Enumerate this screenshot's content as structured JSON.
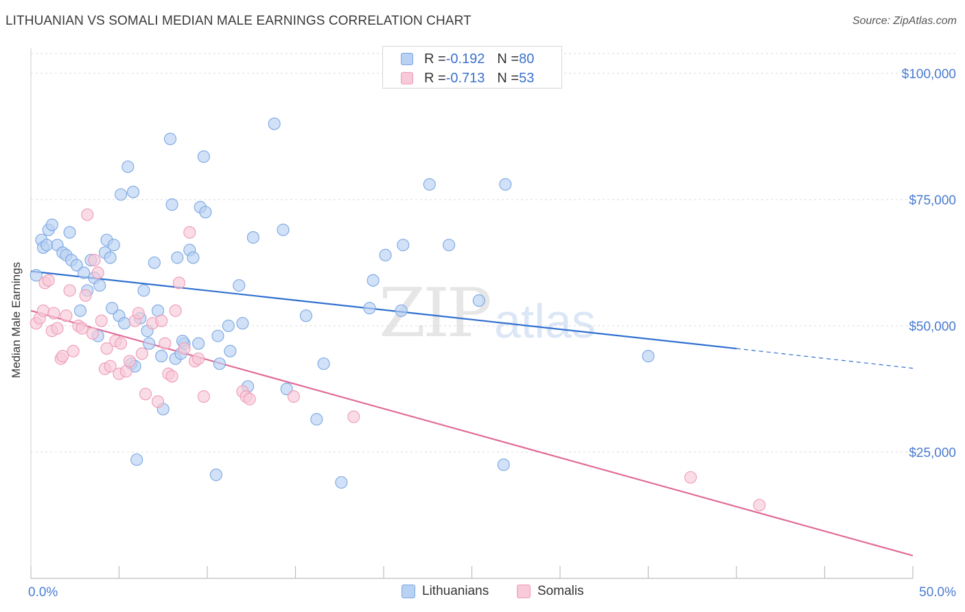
{
  "header": {
    "title": "LITHUANIAN VS SOMALI MEDIAN MALE EARNINGS CORRELATION CHART",
    "source": "Source: ZipAtlas.com"
  },
  "watermark": {
    "zip": "ZIP",
    "atlas": "atlas"
  },
  "legend_top": {
    "rows": [
      {
        "r_label": "R = ",
        "r_value": "-0.192",
        "n_label": "N = ",
        "n_value": "80"
      },
      {
        "r_label": "R = ",
        "r_value": "-0.713",
        "n_label": "N = ",
        "n_value": "53"
      }
    ]
  },
  "legend_bottom": {
    "items": [
      "Lithuanians",
      "Somalis"
    ]
  },
  "colors": {
    "blue_fill": "#b9d1f3",
    "blue_stroke": "#7aa6e2",
    "blue_line": "#2f6fd0",
    "pink_fill": "#f8c9d8",
    "pink_stroke": "#ee9ab6",
    "pink_line": "#e06b98",
    "grid": "#d9d9d9",
    "axis_text": "#4a7bd0"
  },
  "chart_data": {
    "type": "scatter",
    "title": "LITHUANIAN VS SOMALI MEDIAN MALE EARNINGS CORRELATION CHART",
    "ylabel": "Median Male Earnings",
    "xlim": [
      0,
      50
    ],
    "ylim": [
      0,
      105000
    ],
    "x_tick_labels": [
      "0.0%",
      "50.0%"
    ],
    "y_ticks": [
      25000,
      50000,
      75000,
      100000
    ],
    "y_tick_labels": [
      "$25,000",
      "$50,000",
      "$75,000",
      "$100,000"
    ],
    "grid": true,
    "legend_position": "top-center",
    "series": [
      {
        "name": "Lithuanians",
        "r": -0.192,
        "n": 80,
        "trend": {
          "x0": 0,
          "y0": 60800,
          "x1": 40,
          "y1": 45500,
          "dashed_to_x": 50,
          "dashed_to_y": 41600
        },
        "points": [
          [
            0.3,
            60000
          ],
          [
            0.6,
            67000
          ],
          [
            0.7,
            65500
          ],
          [
            0.9,
            66000
          ],
          [
            1.0,
            69000
          ],
          [
            1.2,
            70000
          ],
          [
            1.5,
            66000
          ],
          [
            1.8,
            64500
          ],
          [
            2.0,
            64000
          ],
          [
            2.2,
            68500
          ],
          [
            2.3,
            63000
          ],
          [
            2.6,
            62000
          ],
          [
            2.8,
            53000
          ],
          [
            3.0,
            60500
          ],
          [
            3.2,
            57000
          ],
          [
            3.4,
            63000
          ],
          [
            3.6,
            59500
          ],
          [
            3.8,
            48000
          ],
          [
            3.9,
            58000
          ],
          [
            4.2,
            64500
          ],
          [
            4.3,
            67000
          ],
          [
            4.5,
            63500
          ],
          [
            4.7,
            66000
          ],
          [
            5.0,
            52000
          ],
          [
            5.1,
            76000
          ],
          [
            5.3,
            50500
          ],
          [
            5.5,
            81500
          ],
          [
            5.7,
            42500
          ],
          [
            5.8,
            76500
          ],
          [
            6.0,
            23500
          ],
          [
            6.2,
            51500
          ],
          [
            6.4,
            57000
          ],
          [
            6.6,
            49000
          ],
          [
            6.7,
            46500
          ],
          [
            7.0,
            62500
          ],
          [
            7.2,
            53000
          ],
          [
            7.4,
            44000
          ],
          [
            7.5,
            33500
          ],
          [
            7.9,
            87000
          ],
          [
            8.0,
            74000
          ],
          [
            8.2,
            43500
          ],
          [
            8.3,
            63500
          ],
          [
            8.5,
            44500
          ],
          [
            8.7,
            46500
          ],
          [
            9.0,
            65000
          ],
          [
            9.2,
            63500
          ],
          [
            9.5,
            46500
          ],
          [
            9.6,
            73500
          ],
          [
            9.8,
            83500
          ],
          [
            9.9,
            72500
          ],
          [
            10.5,
            20500
          ],
          [
            10.6,
            48000
          ],
          [
            10.7,
            42500
          ],
          [
            11.2,
            50000
          ],
          [
            11.3,
            45000
          ],
          [
            11.8,
            58000
          ],
          [
            12.0,
            50500
          ],
          [
            12.3,
            38000
          ],
          [
            12.6,
            67500
          ],
          [
            13.8,
            90000
          ],
          [
            14.3,
            69000
          ],
          [
            14.5,
            37500
          ],
          [
            15.6,
            52000
          ],
          [
            16.2,
            31500
          ],
          [
            16.6,
            42500
          ],
          [
            17.6,
            19000
          ],
          [
            19.2,
            53500
          ],
          [
            19.4,
            59000
          ],
          [
            20.1,
            64000
          ],
          [
            21.0,
            53000
          ],
          [
            21.1,
            66000
          ],
          [
            22.6,
            78000
          ],
          [
            23.7,
            66000
          ],
          [
            25.4,
            55000
          ],
          [
            26.8,
            22500
          ],
          [
            26.9,
            78000
          ],
          [
            35.0,
            44000
          ],
          [
            4.6,
            53500
          ],
          [
            5.9,
            42000
          ],
          [
            8.6,
            47000
          ]
        ]
      },
      {
        "name": "Somalis",
        "r": -0.713,
        "n": 53,
        "trend": {
          "x0": 0,
          "y0": 53000,
          "x1": 50,
          "y1": 4500
        },
        "points": [
          [
            0.3,
            50500
          ],
          [
            0.5,
            51500
          ],
          [
            0.7,
            53000
          ],
          [
            0.8,
            58500
          ],
          [
            1.0,
            59000
          ],
          [
            1.2,
            49000
          ],
          [
            1.3,
            52500
          ],
          [
            1.5,
            49500
          ],
          [
            1.7,
            43500
          ],
          [
            1.8,
            44000
          ],
          [
            2.0,
            52000
          ],
          [
            2.2,
            57000
          ],
          [
            2.4,
            45000
          ],
          [
            2.7,
            50000
          ],
          [
            2.9,
            49500
          ],
          [
            3.1,
            56000
          ],
          [
            3.2,
            72000
          ],
          [
            3.5,
            48500
          ],
          [
            3.6,
            63000
          ],
          [
            3.8,
            60500
          ],
          [
            4.0,
            51000
          ],
          [
            4.2,
            41500
          ],
          [
            4.3,
            45500
          ],
          [
            4.5,
            42000
          ],
          [
            4.8,
            47000
          ],
          [
            5.0,
            40500
          ],
          [
            5.1,
            46500
          ],
          [
            5.4,
            41000
          ],
          [
            5.6,
            43000
          ],
          [
            5.9,
            51000
          ],
          [
            6.1,
            52500
          ],
          [
            6.3,
            44500
          ],
          [
            6.5,
            36500
          ],
          [
            6.9,
            50500
          ],
          [
            7.2,
            35000
          ],
          [
            7.4,
            51000
          ],
          [
            7.6,
            46500
          ],
          [
            7.8,
            40500
          ],
          [
            8.0,
            40000
          ],
          [
            8.2,
            53000
          ],
          [
            8.4,
            58500
          ],
          [
            8.7,
            45500
          ],
          [
            9.0,
            68500
          ],
          [
            9.3,
            43000
          ],
          [
            9.5,
            43500
          ],
          [
            9.8,
            36000
          ],
          [
            12.0,
            37000
          ],
          [
            12.2,
            36000
          ],
          [
            12.4,
            35500
          ],
          [
            14.9,
            36000
          ],
          [
            18.3,
            32000
          ],
          [
            37.4,
            20000
          ],
          [
            41.3,
            14500
          ]
        ]
      }
    ]
  }
}
